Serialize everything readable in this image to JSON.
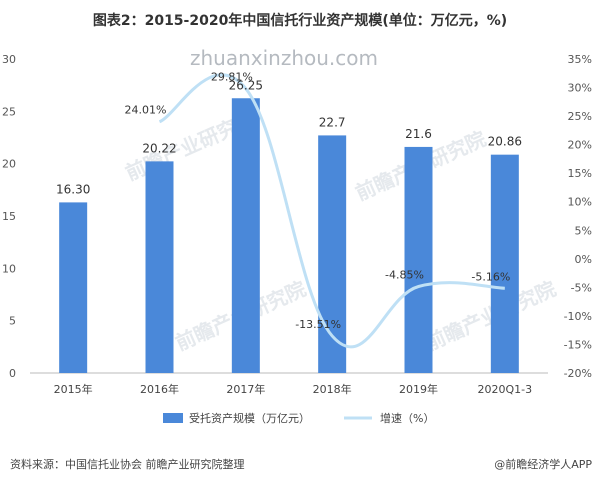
{
  "title": "图表2：2015-2020年中国信托行业资产规模(单位：万亿元，%)",
  "source": "资料来源：中国信托业协会 前瞻产业研究院整理",
  "brand": "@前瞻经济学人APP",
  "watermark_url": "zhuanxinzhou.com",
  "watermark_text": "前瞻产业研究院",
  "chart_data": {
    "type": "bar",
    "categories": [
      "2015年",
      "2016年",
      "2017年",
      "2018年",
      "2019年",
      "2020Q1-3"
    ],
    "series": [
      {
        "name": "受托资产规模（万亿元）",
        "type": "bar",
        "axis": "left",
        "values": [
          16.3,
          20.22,
          26.25,
          22.7,
          21.6,
          20.86
        ],
        "labels": [
          "16.30",
          "20.22",
          "26.25",
          "22.7",
          "21.6",
          "20.86"
        ]
      },
      {
        "name": "增速（%）",
        "type": "line",
        "axis": "right",
        "values": [
          null,
          24.01,
          29.81,
          -13.51,
          -4.85,
          -5.16
        ],
        "labels": [
          "",
          "24.01%",
          "29.81%",
          "-13.51%",
          "-4.85%",
          "-5.16%"
        ]
      }
    ],
    "y_left": {
      "min": 0,
      "max": 30,
      "ticks": [
        "0",
        "5",
        "10",
        "15",
        "20",
        "25",
        "30"
      ]
    },
    "y_right": {
      "min": -20,
      "max": 35,
      "ticks": [
        "-20%",
        "-15%",
        "-10%",
        "-5%",
        "0%",
        "5%",
        "10%",
        "15%",
        "20%",
        "25%",
        "30%",
        "35%"
      ]
    },
    "grid": false,
    "legend_position": "bottom",
    "colors": {
      "bar": "#4a88d9",
      "line": "#bfe0f5"
    }
  }
}
